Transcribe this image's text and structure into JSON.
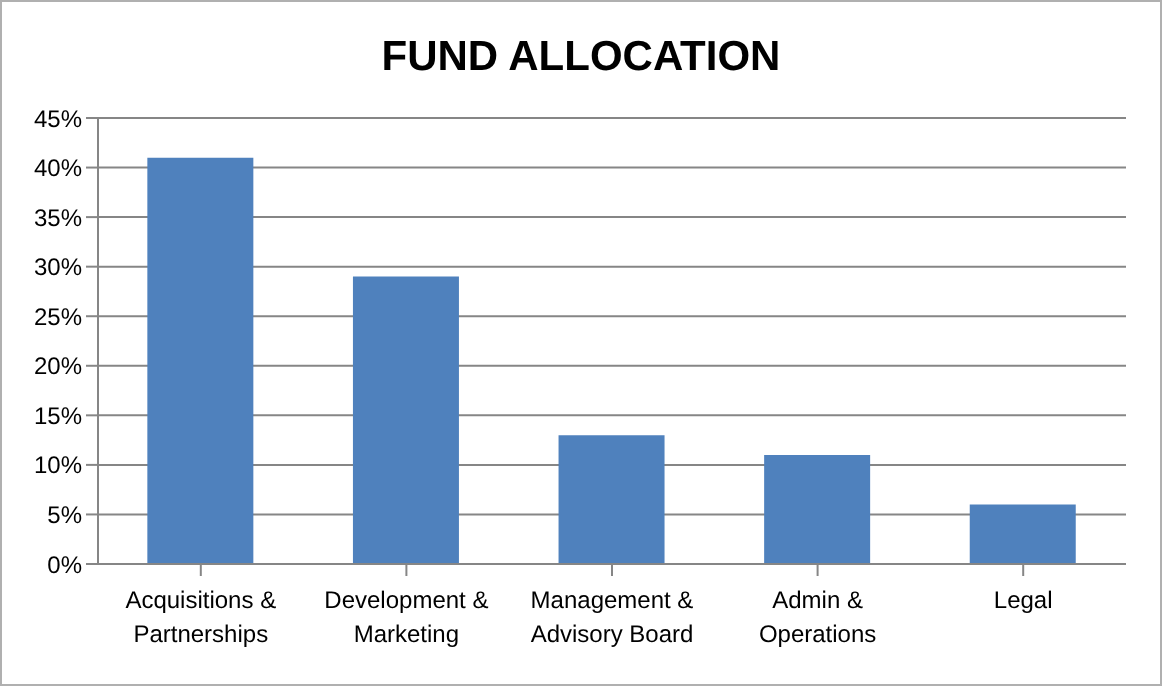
{
  "chart_data": {
    "type": "bar",
    "title": "FUND ALLOCATION",
    "categories": [
      "Acquisitions & Partnerships",
      "Development & Marketing",
      "Management & Advisory Board",
      "Admin & Operations",
      "Legal"
    ],
    "values": [
      41,
      29,
      13,
      11,
      6
    ],
    "color": "#4f81bd",
    "ylim": [
      0,
      45
    ],
    "yticks": [
      {
        "value": 0,
        "label": "0%"
      },
      {
        "value": 5,
        "label": "5%"
      },
      {
        "value": 10,
        "label": "10%"
      },
      {
        "value": 15,
        "label": "15%"
      },
      {
        "value": 20,
        "label": "20%"
      },
      {
        "value": 25,
        "label": "25%"
      },
      {
        "value": 30,
        "label": "30%"
      },
      {
        "value": 35,
        "label": "35%"
      },
      {
        "value": 40,
        "label": "40%"
      },
      {
        "value": 45,
        "label": "45%"
      }
    ],
    "grid": "y",
    "legend": false
  }
}
